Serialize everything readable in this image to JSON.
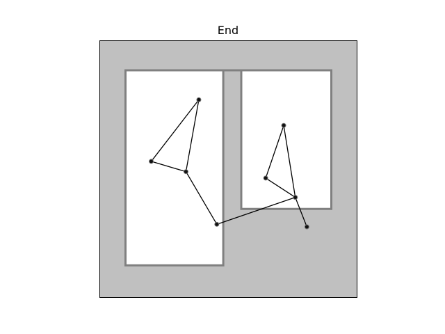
{
  "chart_data": {
    "type": "scatter",
    "title": "End",
    "xlabel": "",
    "ylabel": "",
    "xlim": [
      0,
      10
    ],
    "ylim": [
      0,
      10
    ],
    "axes_visible": false,
    "grid": false,
    "colors": {
      "wall_fill": "#c0c0c0",
      "wall_edge": "#808080",
      "floor": "#ffffff",
      "path": "#000000",
      "node": "#111111",
      "frame": "#000000"
    },
    "walls_polygon": {
      "x": [
        1,
        1,
        4.8,
        4.8,
        5.5,
        5.5,
        9,
        9
      ],
      "y": [
        8.85,
        1.25,
        1.25,
        8.85,
        8.85,
        3.45,
        3.45,
        8.85
      ]
    },
    "path_segments": [
      {
        "x": [
          3.85,
          2
        ],
        "y": [
          7.7,
          5.3
        ]
      },
      {
        "x": [
          2,
          3.35
        ],
        "y": [
          5.3,
          4.9
        ]
      },
      {
        "x": [
          3.35,
          3.85
        ],
        "y": [
          4.9,
          7.7
        ]
      },
      {
        "x": [
          3.35,
          4.55
        ],
        "y": [
          4.9,
          2.85
        ]
      },
      {
        "x": [
          4.55,
          7.6
        ],
        "y": [
          2.85,
          3.9
        ]
      },
      {
        "x": [
          7.6,
          6.45
        ],
        "y": [
          3.9,
          4.65
        ]
      },
      {
        "x": [
          6.45,
          7.15
        ],
        "y": [
          4.65,
          6.7
        ]
      },
      {
        "x": [
          7.15,
          7.6
        ],
        "y": [
          6.7,
          3.9
        ]
      },
      {
        "x": [
          7.6,
          8.05
        ],
        "y": [
          3.9,
          2.75
        ]
      }
    ],
    "points": {
      "x": [
        3.85,
        2,
        3.35,
        4.55,
        7.6,
        6.45,
        7.15,
        8.05
      ],
      "y": [
        7.7,
        5.3,
        4.9,
        2.85,
        3.9,
        4.65,
        6.7,
        2.75
      ]
    }
  }
}
